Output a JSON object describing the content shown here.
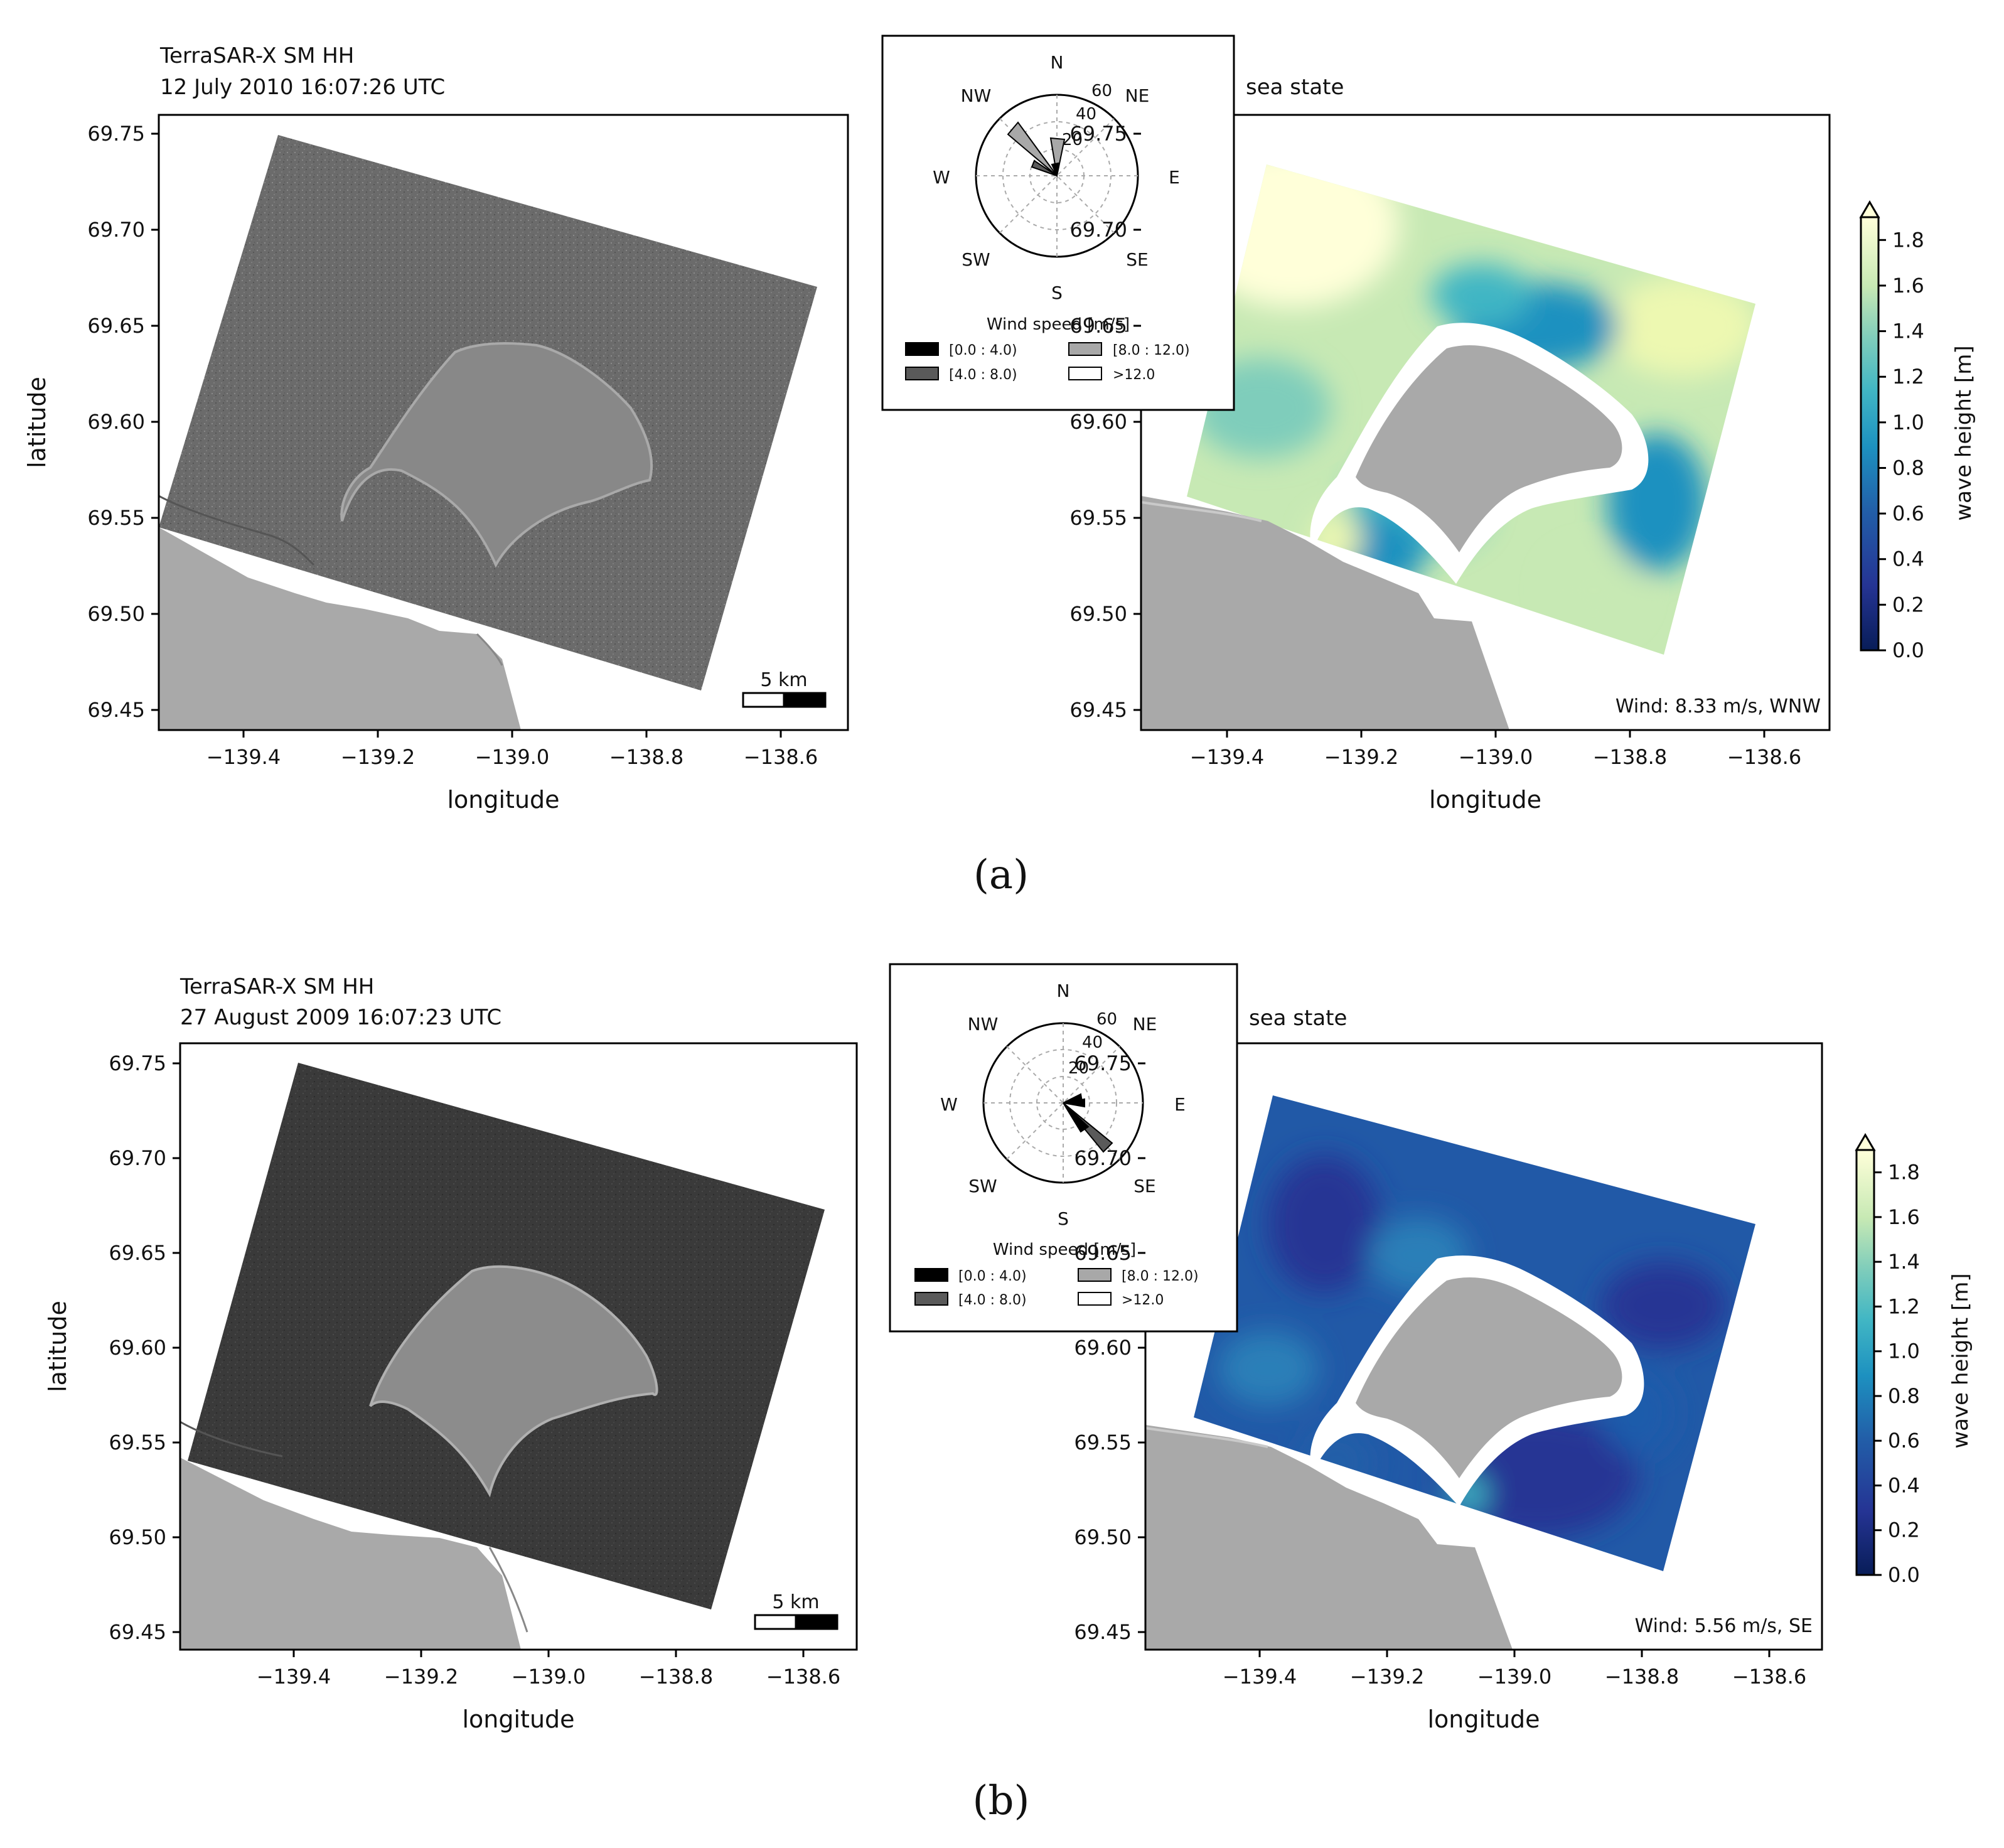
{
  "figure": {
    "panels": [
      {
        "label": "(a)",
        "sar": {
          "title_line1": "TerraSAR-X SM HH",
          "title_line2": "12 July 2010 16:07:26 UTC",
          "scalebar": "5 km"
        },
        "seastate": {
          "title": "sea state",
          "wind_text": "Wind: 8.33 m/s, WNW"
        },
        "windrose": {
          "directions": [
            "N",
            "NE",
            "E",
            "SE",
            "S",
            "SW",
            "W",
            "NW"
          ],
          "radial_ticks": [
            "20",
            "40",
            "60"
          ],
          "legend_title": "Wind speed [m/s]",
          "legend_items": [
            "[0.0 : 4.0)",
            "[4.0 : 8.0)",
            "[8.0 : 12.0)",
            ">12.0"
          ],
          "legend_colors": [
            "#000000",
            "#5a5a5a",
            "#a8a8a8",
            "#ffffff"
          ]
        }
      },
      {
        "label": "(b)",
        "sar": {
          "title_line1": "TerraSAR-X SM HH",
          "title_line2": "27 August 2009 16:07:23 UTC",
          "scalebar": "5 km"
        },
        "seastate": {
          "title": "sea state",
          "wind_text": "Wind: 5.56 m/s, SE"
        },
        "windrose": {
          "directions": [
            "N",
            "NE",
            "E",
            "SE",
            "S",
            "SW",
            "W",
            "NW"
          ],
          "radial_ticks": [
            "20",
            "40",
            "60"
          ],
          "legend_title": "Wind speed [m/s]",
          "legend_items": [
            "[0.0 : 4.0)",
            "[4.0 : 8.0)",
            "[8.0 : 12.0)",
            ">12.0"
          ],
          "legend_colors": [
            "#000000",
            "#5a5a5a",
            "#a8a8a8",
            "#ffffff"
          ]
        }
      }
    ],
    "axes": {
      "xlabel": "longitude",
      "ylabel": "latitude",
      "x_ticks": [
        "−139.4",
        "−139.2",
        "−139.0",
        "−138.8",
        "−138.6"
      ],
      "y_ticks": [
        "69.75",
        "69.70",
        "69.65",
        "69.60",
        "69.55",
        "69.50",
        "69.45"
      ]
    },
    "colorbar": {
      "label": "wave height [m]",
      "ticks": [
        "0.0",
        "0.2",
        "0.4",
        "0.6",
        "0.8",
        "1.0",
        "1.2",
        "1.4",
        "1.6",
        "1.8"
      ]
    }
  },
  "chart_data": [
    {
      "type": "heatmap",
      "title": "sea state",
      "xlabel": "longitude",
      "ylabel": "latitude",
      "xlim": [
        -139.56,
        -138.55
      ],
      "ylim": [
        69.44,
        69.76
      ],
      "colorbar_label": "wave height [m]",
      "colorbar_range": [
        0.0,
        1.9
      ],
      "annotation": "Wind: 8.33 m/s, WNW",
      "wind_rose": {
        "dominant_direction": "NW",
        "dominant_bin": "[8.0 : 12.0)",
        "max_frequency": 40
      }
    },
    {
      "type": "heatmap",
      "title": "sea state",
      "xlabel": "longitude",
      "ylabel": "latitude",
      "xlim": [
        -139.56,
        -138.55
      ],
      "ylim": [
        69.44,
        69.76
      ],
      "colorbar_label": "wave height [m]",
      "colorbar_range": [
        0.0,
        1.9
      ],
      "annotation": "Wind: 5.56 m/s, SE",
      "wind_rose": {
        "dominant_direction": "SE",
        "dominant_bin": "[4.0 : 8.0)",
        "max_frequency": 45
      }
    }
  ]
}
